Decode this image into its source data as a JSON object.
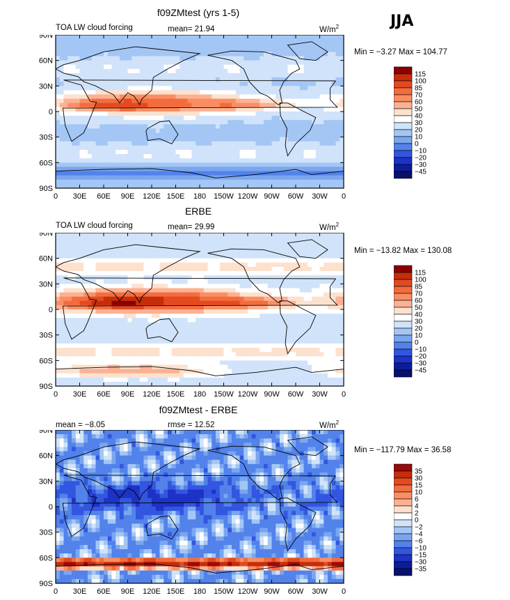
{
  "season": "JJA",
  "colors": {
    "frame": "#000000",
    "continent": "#000000"
  },
  "axes": {
    "lat_labels": [
      "90N",
      "60N",
      "30N",
      "0",
      "30S",
      "60S",
      "90S"
    ],
    "lon_labels": [
      "0",
      "30E",
      "60E",
      "90E",
      "120E",
      "150E",
      "180",
      "150W",
      "120W",
      "90W",
      "60W",
      "30W",
      "0"
    ]
  },
  "panels": [
    {
      "title": "f09ZMtest (yrs 1-5)",
      "left_label": "TOA LW cloud forcing",
      "center_label": "mean=  21.94",
      "units": "W/m",
      "units_sup": "2",
      "minmax": "Min =  −3.27 Max = 104.77",
      "colorbar": {
        "labels": [
          "115",
          "100",
          "85",
          "70",
          "60",
          "50",
          "40",
          "30",
          "20",
          "10",
          "0",
          "−10",
          "−20",
          "−30",
          "−45"
        ],
        "colors": [
          "#8b0000",
          "#c62d0a",
          "#e34a20",
          "#f36c3e",
          "#fa8e62",
          "#fcb193",
          "#fde1cf",
          "#ffffff",
          "#d0e3fa",
          "#a3c6f5",
          "#7aa6ee",
          "#5282ea",
          "#3356e0",
          "#1d32c6",
          "#0c1d9b",
          "#06126b"
        ]
      },
      "map_style": "model"
    },
    {
      "title": "ERBE",
      "left_label": "TOA LW cloud forcing",
      "center_label": "mean=  29.99",
      "units": "W/m",
      "units_sup": "2",
      "minmax": "Min = −13.82 Max = 130.08",
      "colorbar": {
        "labels": [
          "115",
          "100",
          "85",
          "70",
          "60",
          "50",
          "40",
          "30",
          "20",
          "10",
          "0",
          "−10",
          "−20",
          "−30",
          "−45"
        ],
        "colors": [
          "#8b0000",
          "#c62d0a",
          "#e34a20",
          "#f36c3e",
          "#fa8e62",
          "#fcb193",
          "#fde1cf",
          "#ffffff",
          "#d0e3fa",
          "#a3c6f5",
          "#7aa6ee",
          "#5282ea",
          "#3356e0",
          "#1d32c6",
          "#0c1d9b",
          "#06126b"
        ]
      },
      "map_style": "obs"
    },
    {
      "title": "f09ZMtest - ERBE",
      "left_label": "mean =   −8.05",
      "center_label": "rmse =   12.52",
      "units": "W/m",
      "units_sup": "2",
      "minmax": "Min = −117.79 Max =  36.58",
      "colorbar": {
        "labels": [
          "35",
          "30",
          "15",
          "10",
          "6",
          "4",
          "2",
          "0",
          "−2",
          "−4",
          "−6",
          "−10",
          "−15",
          "−30",
          "−35"
        ],
        "colors": [
          "#9b0a0a",
          "#c62d0a",
          "#e34a20",
          "#f36c3e",
          "#fa8e62",
          "#fcb193",
          "#fde1cf",
          "#ffffff",
          "#d0e3fa",
          "#a3c6f5",
          "#7aa6ee",
          "#5282ea",
          "#3356e0",
          "#1d32c6",
          "#0c1d9b",
          "#06126b"
        ]
      },
      "map_style": "diff"
    }
  ]
}
